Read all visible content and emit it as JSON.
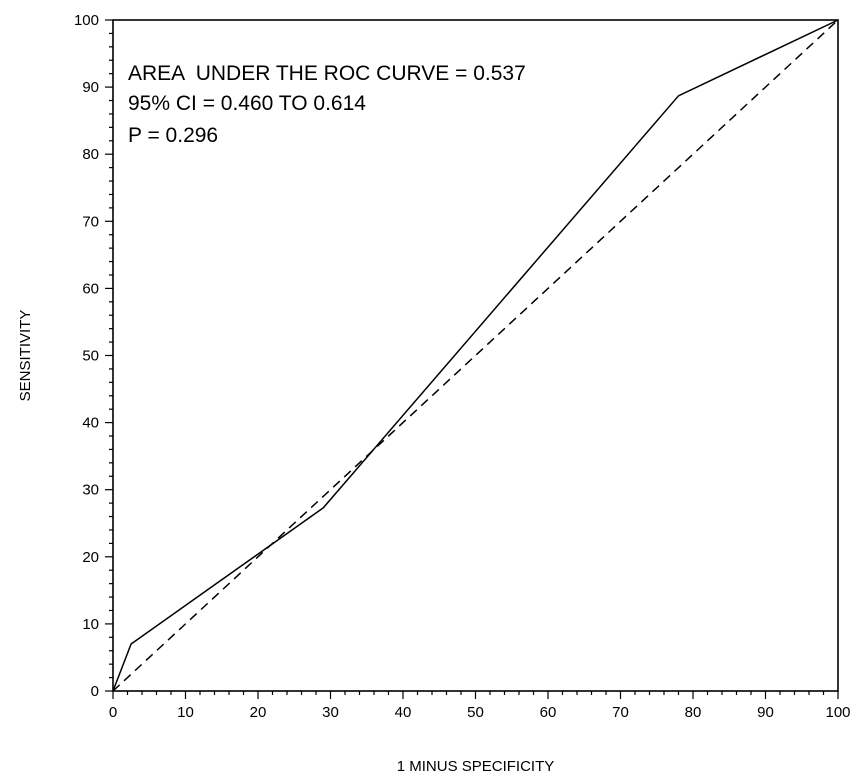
{
  "chart_data": {
    "type": "line",
    "xlabel": "1 MINUS SPECIFICITY",
    "ylabel": "SENSITIVITY",
    "xlim": [
      0,
      100
    ],
    "ylim": [
      0,
      100
    ],
    "x_ticks": [
      "0",
      "10",
      "20",
      "30",
      "40",
      "50",
      "60",
      "70",
      "80",
      "90",
      "100"
    ],
    "y_ticks": [
      "0",
      "10",
      "20",
      "30",
      "40",
      "50",
      "60",
      "70",
      "80",
      "90",
      "100"
    ],
    "grid": false,
    "series": [
      {
        "style": "solid",
        "x": [
          0,
          2.5,
          29,
          78,
          100
        ],
        "y": [
          0,
          7,
          27.3,
          88.7,
          100
        ]
      },
      {
        "style": "dashed",
        "x": [
          0,
          100
        ],
        "y": [
          0,
          100
        ]
      }
    ],
    "annotations": [
      "AREA  UNDER THE ROC CURVE = 0.537",
      "95% CI = 0.460 TO 0.614",
      "P = 0.296"
    ]
  }
}
